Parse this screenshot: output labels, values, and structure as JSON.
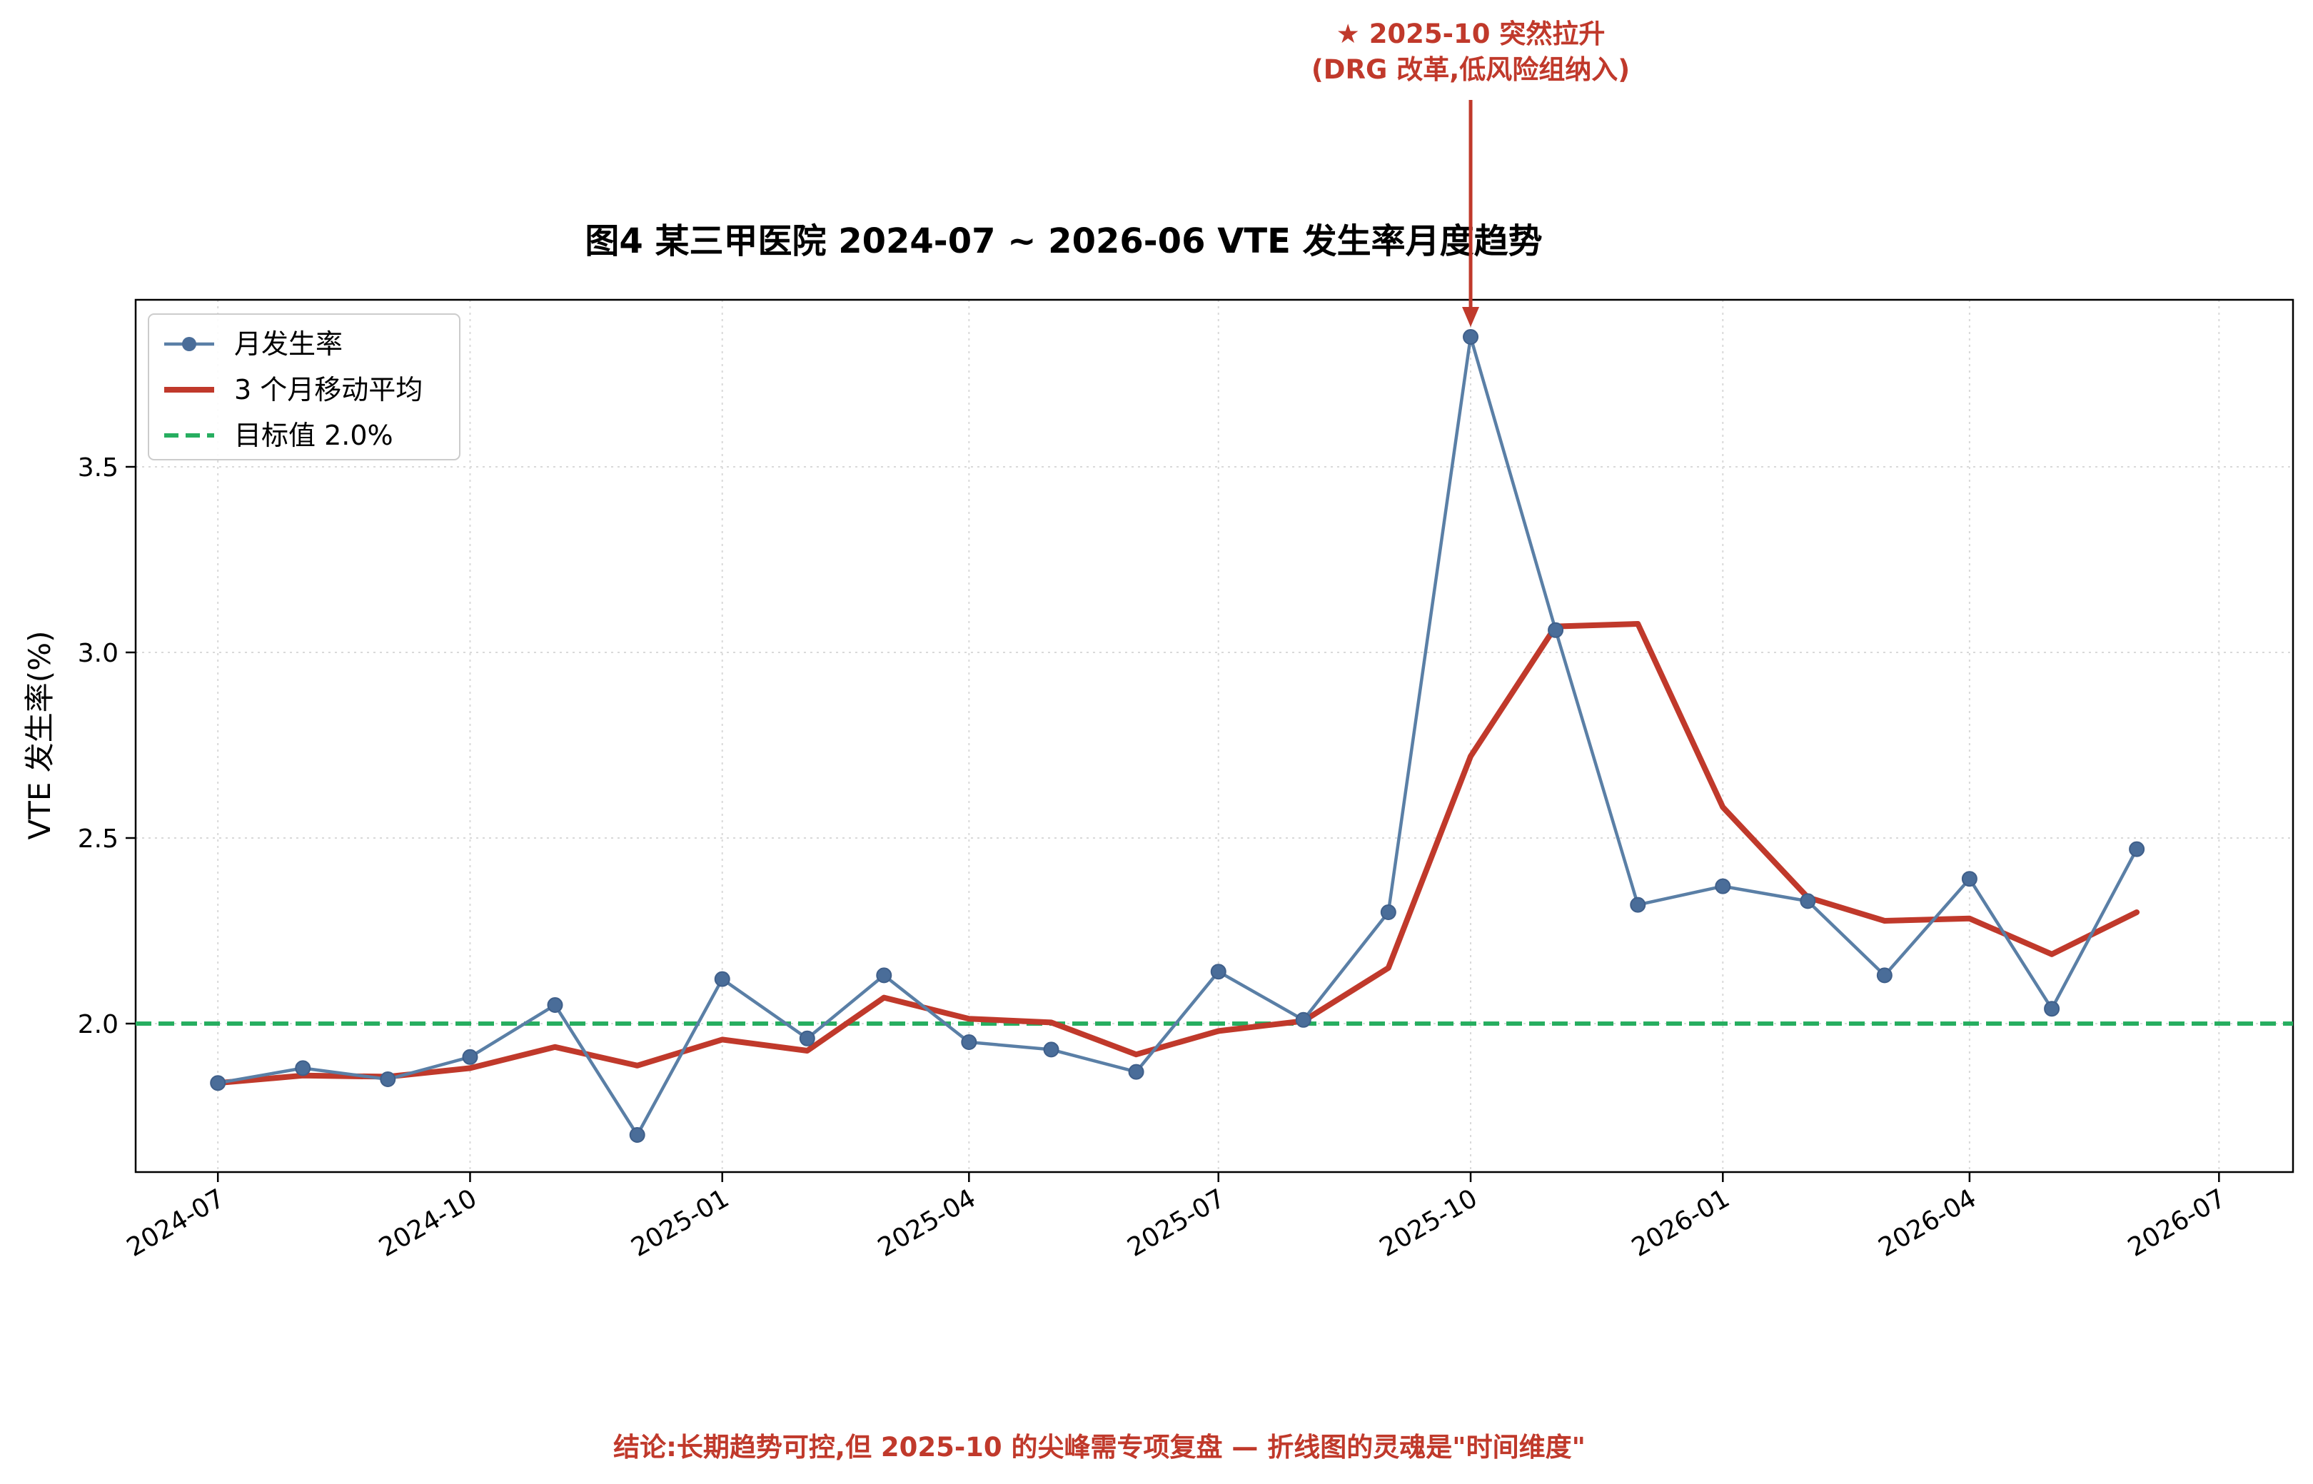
{
  "chart_data": {
    "type": "line",
    "title": "图4 某三甲医院 2024-07 ~ 2026-06 VTE 发生率月度趋势",
    "ylabel": "VTE 发生率(%)",
    "xlabel": "",
    "x": [
      "2024-07",
      "2024-08",
      "2024-09",
      "2024-10",
      "2024-11",
      "2024-12",
      "2025-01",
      "2025-02",
      "2025-03",
      "2025-04",
      "2025-05",
      "2025-06",
      "2025-07",
      "2025-08",
      "2025-09",
      "2025-10",
      "2025-11",
      "2025-12",
      "2026-01",
      "2026-02",
      "2026-03",
      "2026-04",
      "2026-05",
      "2026-06"
    ],
    "xlim": [
      "2024-06-01",
      "2026-07-28"
    ],
    "ylim": [
      1.6,
      3.95
    ],
    "x_ticks": [
      "2024-07",
      "2024-10",
      "2025-01",
      "2025-04",
      "2025-07",
      "2025-10",
      "2026-01",
      "2026-04",
      "2026-07"
    ],
    "y_ticks": [
      "2.0",
      "2.5",
      "3.0",
      "3.5"
    ],
    "grid": true,
    "legend_position": "top-left",
    "series": [
      {
        "name": "月发生率",
        "style": "line-with-markers",
        "color": "#4e79a7",
        "values": [
          1.84,
          1.88,
          1.85,
          1.91,
          2.05,
          1.7,
          2.12,
          1.96,
          2.13,
          1.95,
          1.93,
          1.87,
          2.14,
          2.01,
          2.3,
          3.85,
          3.06,
          2.32,
          2.37,
          2.33,
          2.13,
          2.39,
          2.04,
          2.47
        ]
      },
      {
        "name": "3 个月移动平均",
        "style": "thick-line",
        "color": "#c0392b",
        "values": [
          1.84,
          1.86,
          1.857,
          1.88,
          1.937,
          1.887,
          1.957,
          1.927,
          2.07,
          2.013,
          2.003,
          1.917,
          1.98,
          2.007,
          2.15,
          2.72,
          3.07,
          3.077,
          2.583,
          2.34,
          2.277,
          2.283,
          2.187,
          2.3
        ]
      }
    ],
    "reference_line": {
      "name": "目标值 2.0%",
      "value": 2.0,
      "style": "dashed",
      "color": "#27ae60"
    },
    "annotation": {
      "line1": "★ 2025-10 突然拉升",
      "line2": "(DRG 改革,低风险组纳入)",
      "target_x": "2025-10",
      "target_y": 3.85,
      "color": "#c0392b"
    },
    "footer": "结论:长期趋势可控,但 2025-10 的尖峰需专项复盘 — 折线图的灵魂是\"时间维度\""
  }
}
